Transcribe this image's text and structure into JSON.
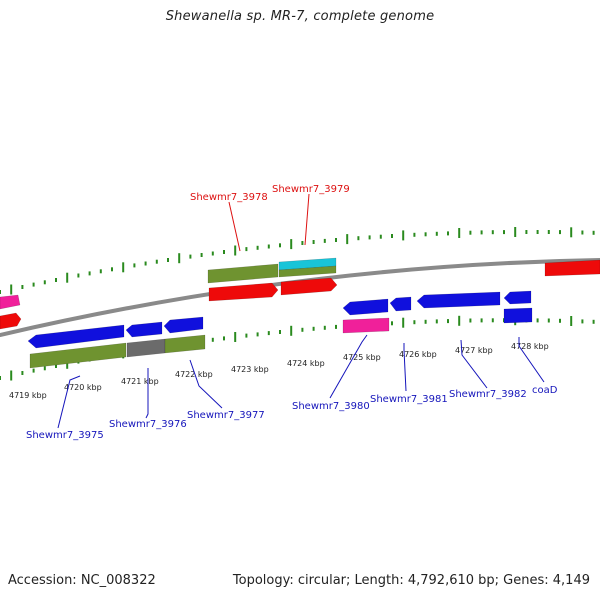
{
  "title": "Shewanella sp. MR-7, complete genome",
  "accession": "Accession: NC_008322",
  "topology": "Topology: circular; Length: 4,792,610 bp; Genes: 4,149",
  "colors": {
    "backbone": "#8a8a8a",
    "tick": "#2a8a1e",
    "red": "#ee0a0a",
    "blue": "#1010dd",
    "pink": "#f0209a",
    "olive": "#6f9330",
    "gray": "#6b6b6b",
    "cyan": "#19c4d8",
    "label_red": "#dd1111",
    "label_blue": "#1515bb"
  },
  "ticks": [
    {
      "label": "4719 kbp"
    },
    {
      "label": "4720 kbp"
    },
    {
      "label": "4721 kbp"
    },
    {
      "label": "4722 kbp"
    },
    {
      "label": "4723 kbp"
    },
    {
      "label": "4724 kbp"
    },
    {
      "label": "4725 kbp"
    },
    {
      "label": "4726 kbp"
    },
    {
      "label": "4727 kbp"
    },
    {
      "label": "4728 kbp"
    }
  ],
  "gene_labels": [
    {
      "text": "Shewmr7_3978",
      "strand": "forward"
    },
    {
      "text": "Shewmr7_3979",
      "strand": "forward"
    },
    {
      "text": "Shewmr7_3975",
      "strand": "reverse"
    },
    {
      "text": "Shewmr7_3976",
      "strand": "reverse"
    },
    {
      "text": "Shewmr7_3977",
      "strand": "reverse"
    },
    {
      "text": "Shewmr7_3980",
      "strand": "reverse"
    },
    {
      "text": "Shewmr7_3981",
      "strand": "reverse"
    },
    {
      "text": "Shewmr7_3982",
      "strand": "reverse"
    },
    {
      "text": "coaD",
      "strand": "reverse"
    }
  ]
}
